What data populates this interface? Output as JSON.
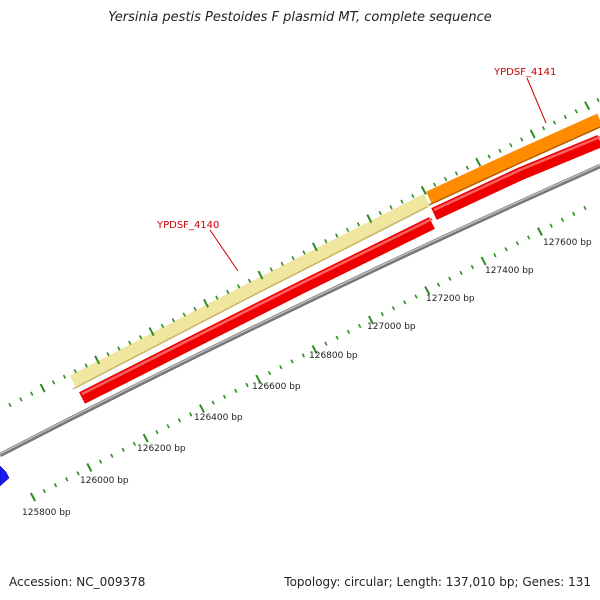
{
  "title": "Yersinia pestis Pestoides F plasmid MT, complete sequence",
  "footer": {
    "accession": "Accession: NC_009378",
    "topology": "Topology: circular; Length: 137,010 bp; Genes: 131"
  },
  "genes": [
    {
      "label": "YPDSF_4140",
      "feature": "cds",
      "label_color": "#cc0000",
      "gene_color": "#f0e6a0"
    },
    {
      "label": "YPDSF_4140",
      "feature": "gene",
      "color": "#ee0000"
    },
    {
      "label": "YPDSF_4141",
      "feature": "cds",
      "label_color": "#cc0000",
      "gene_color": "#ff8c00"
    },
    {
      "label": "YPDSF_4141",
      "feature": "gene",
      "color": "#ee0000"
    },
    {
      "feature": "neighbor",
      "color": "#1a1aee"
    }
  ],
  "ruler": {
    "tick_color": "#2e8b22",
    "labels": [
      "125800 bp",
      "126000 bp",
      "126200 bp",
      "126400 bp",
      "126600 bp",
      "126800 bp",
      "127000 bp",
      "127200 bp",
      "127400 bp",
      "127600 bp"
    ]
  },
  "backbone_color": "#888888"
}
